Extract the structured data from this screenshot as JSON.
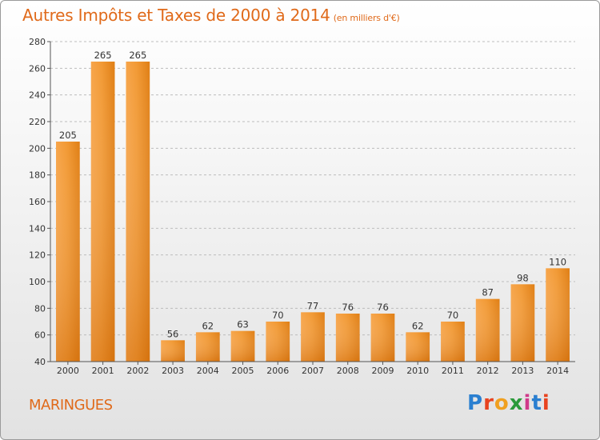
{
  "chart_data": {
    "type": "bar",
    "title": "Autres Impôts et Taxes de 2000 à 2014",
    "subtitle": "(en milliers d'€)",
    "categories": [
      "2000",
      "2001",
      "2002",
      "2003",
      "2004",
      "2005",
      "2006",
      "2007",
      "2008",
      "2009",
      "2010",
      "2011",
      "2012",
      "2013",
      "2014"
    ],
    "values": [
      205,
      265,
      265,
      56,
      62,
      63,
      70,
      77,
      76,
      76,
      62,
      70,
      87,
      98,
      110
    ],
    "ylim": [
      40,
      280
    ],
    "yticks": [
      40,
      60,
      80,
      100,
      120,
      140,
      160,
      180,
      200,
      220,
      240,
      260,
      280
    ],
    "grid": true,
    "bar_color": "#f0901f"
  },
  "footer": {
    "commune": "MARINGUES",
    "logo_letters": [
      "P",
      "r",
      "o",
      "x",
      "i",
      "t",
      "i"
    ],
    "logo_colors": [
      "#2a7fd0",
      "#e8431f",
      "#f0a020",
      "#2a9a3a",
      "#d03a8a",
      "#2a7fd0",
      "#e8431f"
    ]
  }
}
